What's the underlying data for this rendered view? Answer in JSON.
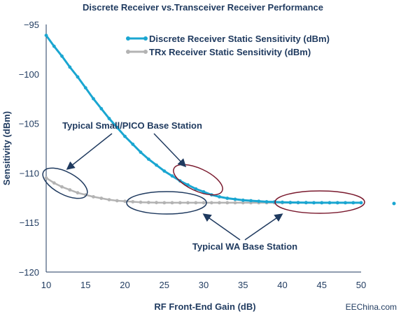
{
  "chart_data": {
    "type": "line",
    "title": "Discrete Receiver vs.Transceiver Receiver Performance",
    "xlabel": "RF Front-End Gain (dB)",
    "ylabel": "Sensitivity (dBm)",
    "xlim": [
      10,
      50
    ],
    "ylim": [
      -120,
      -95
    ],
    "xticks": [
      "10",
      "15",
      "20",
      "25",
      "30",
      "35",
      "40",
      "45",
      "50"
    ],
    "yticks": [
      "−95",
      "−100",
      "−105",
      "−110",
      "−115",
      "−120"
    ],
    "x": [
      10,
      11,
      12,
      13,
      14,
      15,
      16,
      17,
      18,
      19,
      20,
      21,
      22,
      23,
      24,
      25,
      26,
      27,
      28,
      29,
      30,
      31,
      32,
      33,
      34,
      35,
      36,
      37,
      38,
      39,
      40,
      41,
      42,
      43,
      44,
      45,
      46,
      47,
      48,
      49,
      50
    ],
    "series": [
      {
        "name": "Discrete Receiver Static Sensitivity (dBm)",
        "color": "#1aa6d1",
        "values": [
          -96.1,
          -97.2,
          -98.2,
          -99.3,
          -100.3,
          -101.4,
          -102.5,
          -103.5,
          -104.5,
          -105.4,
          -106.3,
          -107.1,
          -107.9,
          -108.6,
          -109.2,
          -109.8,
          -110.3,
          -110.8,
          -111.2,
          -111.6,
          -111.9,
          -112.2,
          -112.4,
          -112.55,
          -112.65,
          -112.75,
          -112.8,
          -112.85,
          -112.9,
          -112.92,
          -112.95,
          -112.97,
          -112.98,
          -112.99,
          -113.0,
          -113.0,
          -113.0,
          -113.0,
          -113.0,
          -113.0,
          -113.0
        ]
      },
      {
        "name": "TRx Receiver Static Sensitivity (dBm)",
        "color": "#b3b3b3",
        "values": [
          -110.5,
          -111.0,
          -111.4,
          -111.7,
          -112.0,
          -112.2,
          -112.4,
          -112.55,
          -112.7,
          -112.8,
          -112.85,
          -112.9,
          -112.95,
          -112.97,
          -112.99,
          -113.0,
          -113.0,
          -113.0,
          -113.0,
          -113.0,
          -113.0,
          -113.0,
          -113.0,
          -113.0,
          -113.0,
          -113.0,
          -113.0,
          -113.0,
          -113.0,
          -113.0,
          -113.0,
          -113.0,
          -113.0,
          -113.0,
          -113.0,
          -113.0,
          -113.0,
          -113.0,
          -113.0,
          -113.0,
          -113.0
        ]
      }
    ],
    "legend_position": "top-right",
    "grid": false,
    "annotations": [
      "Typical Small/PICO Base Station",
      "Typical WA Base Station"
    ]
  },
  "watermark": "EEChina.com"
}
